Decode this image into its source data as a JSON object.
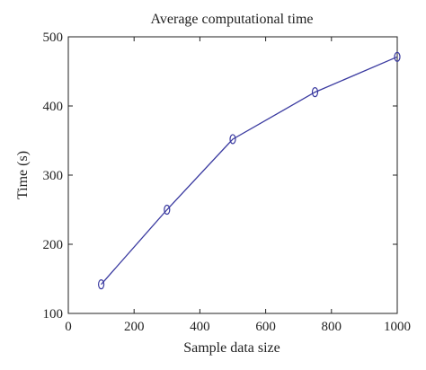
{
  "chart_data": {
    "type": "line",
    "title": "Average computational time",
    "xlabel": "Sample data size",
    "ylabel": "Time (s)",
    "xlim": [
      0,
      1000
    ],
    "ylim": [
      100,
      500
    ],
    "xticks": [
      0,
      200,
      400,
      600,
      800,
      1000
    ],
    "yticks": [
      100,
      200,
      300,
      400,
      500
    ],
    "grid": false,
    "legend": "none",
    "series": [
      {
        "color": "#3a3aa0",
        "marker": "ellipse",
        "x": [
          100,
          300,
          500,
          750,
          1000
        ],
        "y": [
          142,
          250,
          352,
          420,
          471
        ]
      }
    ]
  }
}
